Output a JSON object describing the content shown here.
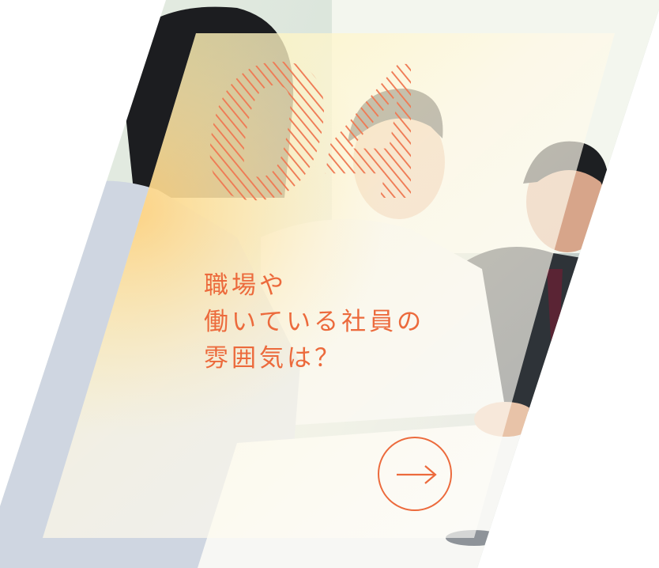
{
  "card": {
    "number": "04",
    "title_lines": [
      "職場や",
      "働いている社員の",
      "雰囲気は？"
    ],
    "arrow_icon": "arrow-right-icon",
    "photo_subject": "office-meeting-photo"
  },
  "colors": {
    "accent": "#ec6a3c",
    "panel_tint": "#fff8d6",
    "photo_dark": "#2b3136"
  }
}
